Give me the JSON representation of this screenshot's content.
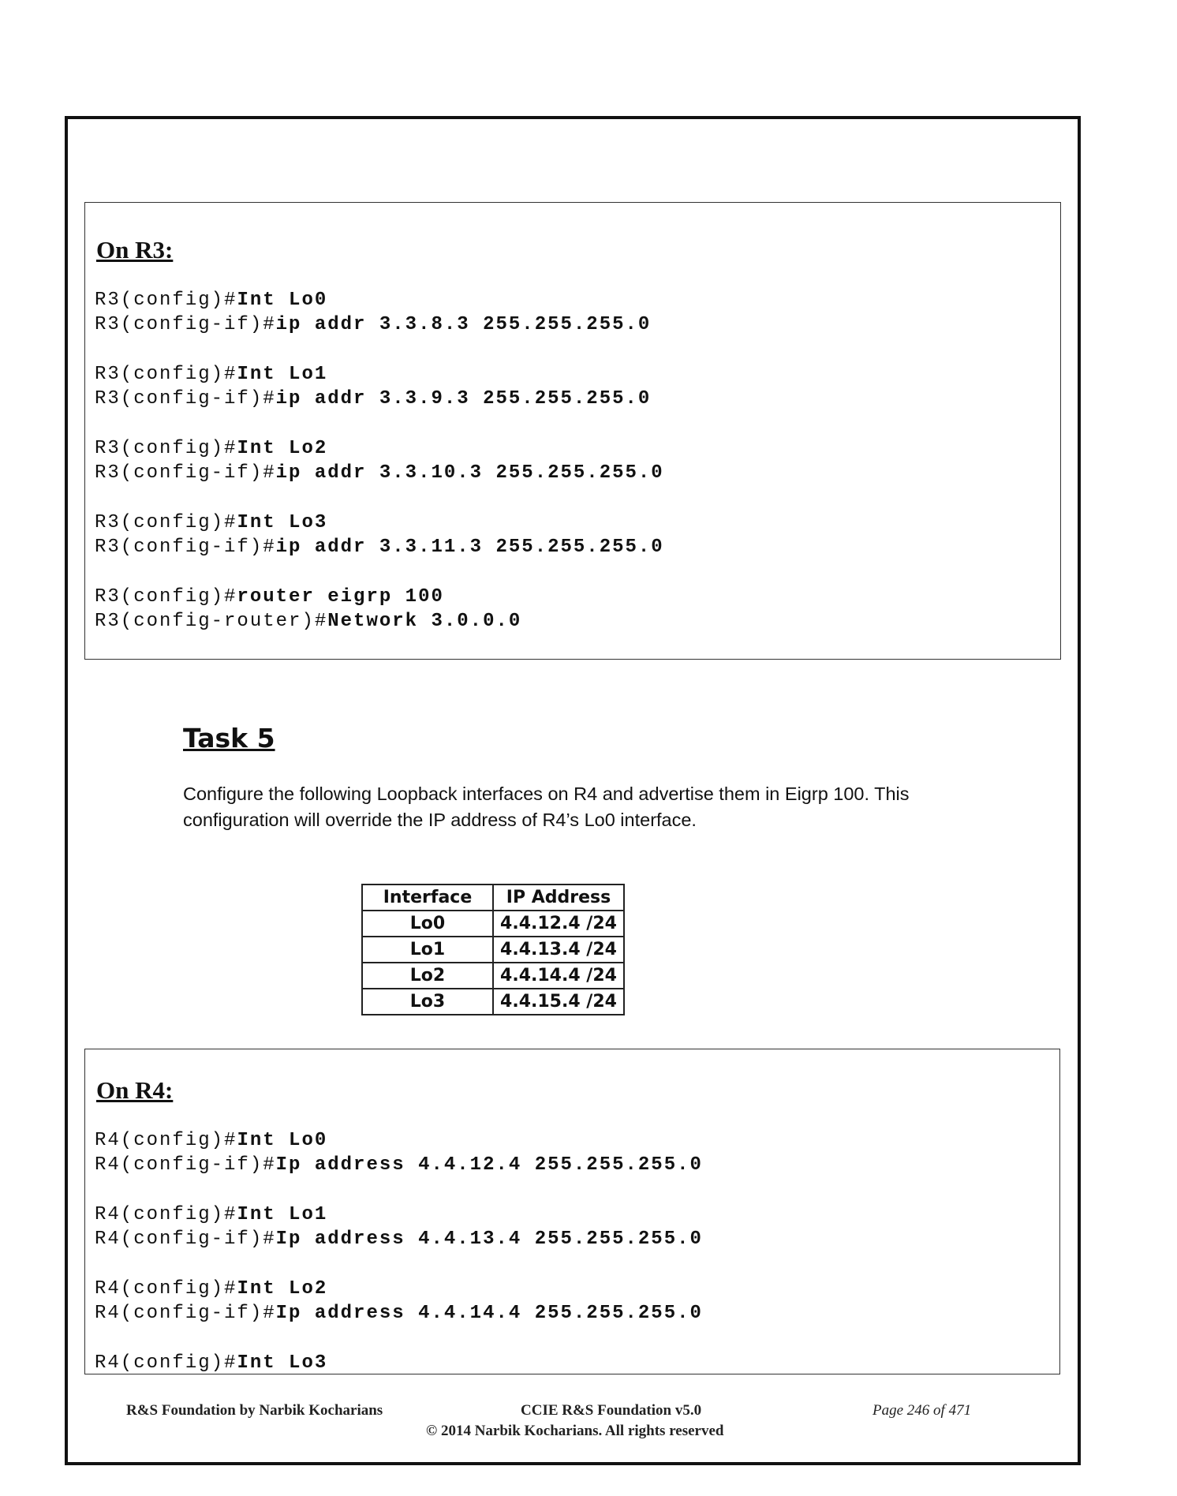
{
  "r3_block": {
    "title": "On R3:",
    "lines": [
      {
        "prompt": "R3(config)#",
        "cmd": "Int Lo0"
      },
      {
        "prompt": "R3(config-if)#",
        "cmd": "ip addr 3.3.8.3 255.255.255.0"
      },
      {
        "prompt": "",
        "cmd": ""
      },
      {
        "prompt": "R3(config)#",
        "cmd": "Int Lo1"
      },
      {
        "prompt": "R3(config-if)#",
        "cmd": "ip addr 3.3.9.3 255.255.255.0"
      },
      {
        "prompt": "",
        "cmd": ""
      },
      {
        "prompt": "R3(config)#",
        "cmd": "Int Lo2"
      },
      {
        "prompt": "R3(config-if)#",
        "cmd": "ip addr 3.3.10.3 255.255.255.0"
      },
      {
        "prompt": "",
        "cmd": ""
      },
      {
        "prompt": "R3(config)#",
        "cmd": "Int Lo3"
      },
      {
        "prompt": "R3(config-if)#",
        "cmd": "ip addr 3.3.11.3 255.255.255.0"
      },
      {
        "prompt": "",
        "cmd": ""
      },
      {
        "prompt": "R3(config)#",
        "cmd": "router eigrp 100"
      },
      {
        "prompt": "R3(config-router)#",
        "cmd": "Network 3.0.0.0"
      }
    ]
  },
  "task": {
    "title": "Task 5",
    "description": "Configure the following Loopback interfaces on R4 and advertise them in Eigrp 100. This configuration will override the IP address of R4’s Lo0 interface."
  },
  "table": {
    "headers": [
      "Interface",
      "IP Address"
    ],
    "rows": [
      [
        "Lo0",
        "4.4.12.4 /24"
      ],
      [
        "Lo1",
        "4.4.13.4 /24"
      ],
      [
        "Lo2",
        "4.4.14.4 /24"
      ],
      [
        "Lo3",
        "4.4.15.4 /24"
      ]
    ]
  },
  "r4_block": {
    "title": "On R4:",
    "lines": [
      {
        "prompt": "R4(config)#",
        "cmd": "Int Lo0"
      },
      {
        "prompt": "R4(config-if)#",
        "cmd": "Ip address 4.4.12.4 255.255.255.0"
      },
      {
        "prompt": "",
        "cmd": ""
      },
      {
        "prompt": "R4(config)#",
        "cmd": "Int Lo1"
      },
      {
        "prompt": "R4(config-if)#",
        "cmd": "Ip address 4.4.13.4 255.255.255.0"
      },
      {
        "prompt": "",
        "cmd": ""
      },
      {
        "prompt": "R4(config)#",
        "cmd": "Int Lo2"
      },
      {
        "prompt": "R4(config-if)#",
        "cmd": "Ip address 4.4.14.4 255.255.255.0"
      },
      {
        "prompt": "",
        "cmd": ""
      },
      {
        "prompt": "R4(config)#",
        "cmd": "Int Lo3"
      }
    ]
  },
  "footer": {
    "left": "R&S Foundation by Narbik Kocharians",
    "center": "CCIE R&S Foundation v5.0",
    "right": "Page 246 of 471",
    "copyright": "© 2014 Narbik Kocharians. All rights reserved"
  }
}
